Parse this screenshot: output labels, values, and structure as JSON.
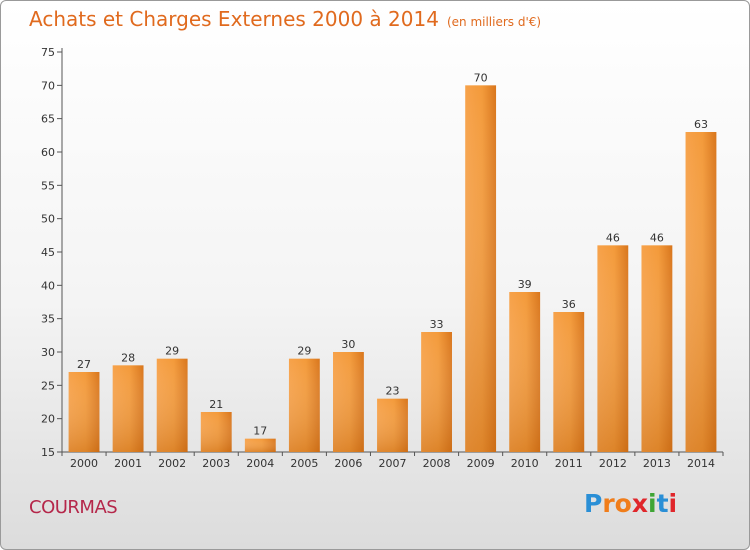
{
  "title": "Achats et Charges Externes 2000 à 2014",
  "subtitle": "(en milliers d'€)",
  "commune": "COURMAS",
  "logo": {
    "text": "Proxiti",
    "letters": [
      "P",
      "r",
      "o",
      "x",
      "i",
      "t",
      "i"
    ],
    "colors": [
      "#2a8fd6",
      "#f07d1a",
      "#f07d1a",
      "#e0262b",
      "#3fa535",
      "#2a8fd6",
      "#e0262b"
    ]
  },
  "chart_data": {
    "type": "bar",
    "categories": [
      "2000",
      "2001",
      "2002",
      "2003",
      "2004",
      "2005",
      "2006",
      "2007",
      "2008",
      "2009",
      "2010",
      "2011",
      "2012",
      "2013",
      "2014"
    ],
    "values": [
      27,
      28,
      29,
      21,
      17,
      29,
      30,
      23,
      33,
      70,
      39,
      36,
      46,
      46,
      63
    ],
    "ylim": [
      15,
      75
    ],
    "yticks": [
      15,
      20,
      25,
      30,
      35,
      40,
      45,
      50,
      55,
      60,
      65,
      70,
      75
    ],
    "grid": false,
    "bar_color": "#f0922e",
    "title": "Achats et Charges Externes 2000 à 2014",
    "xlabel": "",
    "ylabel": ""
  }
}
